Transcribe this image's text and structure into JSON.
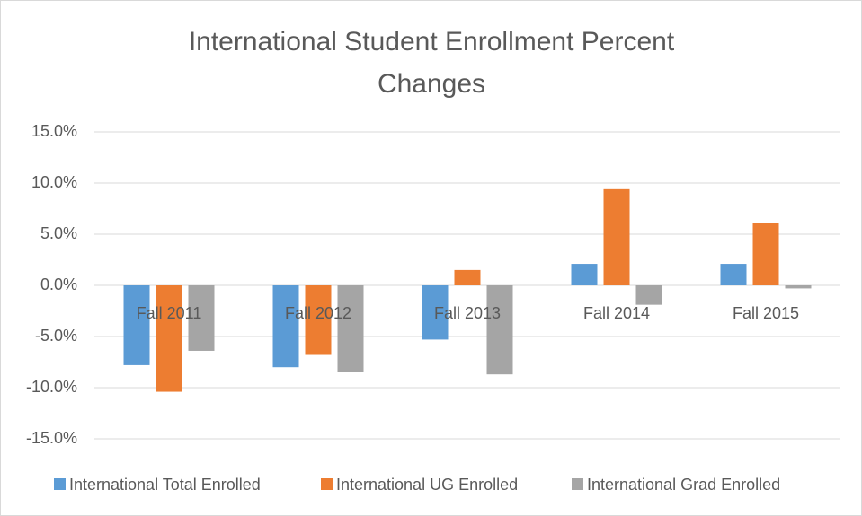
{
  "chart_data": {
    "type": "bar",
    "title": "International Student Enrollment Percent Changes",
    "categories": [
      "Fall 2011",
      "Fall 2012",
      "Fall 2013",
      "Fall 2014",
      "Fall 2015"
    ],
    "series": [
      {
        "name": "International Total Enrolled",
        "color": "#5b9bd5",
        "values": [
          -7.8,
          -8.0,
          -5.3,
          2.1,
          2.1
        ]
      },
      {
        "name": "International UG Enrolled",
        "color": "#ed7d31",
        "values": [
          -10.4,
          -6.8,
          1.5,
          9.4,
          6.1
        ]
      },
      {
        "name": "International Grad Enrolled",
        "color": "#a5a5a5",
        "values": [
          -6.4,
          -8.5,
          -8.7,
          -1.9,
          -0.3
        ]
      }
    ],
    "ylim": [
      -15,
      15
    ],
    "yticks": [
      {
        "value": -15,
        "label": "-15.0%"
      },
      {
        "value": -10,
        "label": "-10.0%"
      },
      {
        "value": -5,
        "label": "-5.0%"
      },
      {
        "value": 0,
        "label": "0.0%"
      },
      {
        "value": 5,
        "label": "5.0%"
      },
      {
        "value": 10,
        "label": "10.0%"
      },
      {
        "value": 15,
        "label": "15.0%"
      }
    ],
    "grid": true,
    "legend": "bottom"
  }
}
